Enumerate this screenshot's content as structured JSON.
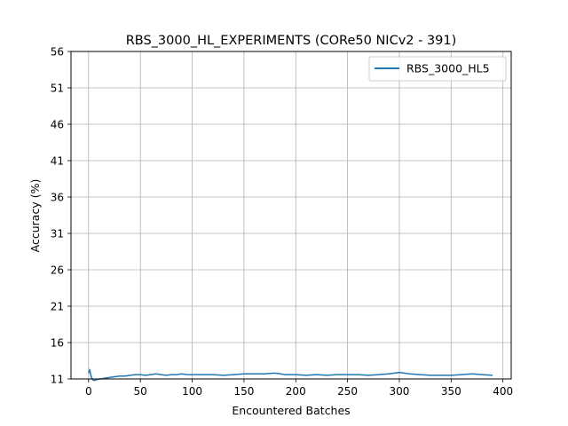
{
  "chart_data": {
    "type": "line",
    "title": "RBS_3000_HL_EXPERIMENTS (CORe50 NICv2 - 391)",
    "xlabel": "Encountered Batches",
    "ylabel": "Accuracy (%)",
    "xlim": [
      -17,
      408
    ],
    "ylim": [
      11,
      56
    ],
    "xticks": [
      0,
      50,
      100,
      150,
      200,
      250,
      300,
      350,
      400
    ],
    "xtick_labels": [
      "0",
      "50",
      "100",
      "150",
      "200",
      "250",
      "300",
      "350",
      "400"
    ],
    "yticks": [
      11,
      16,
      21,
      26,
      31,
      36,
      41,
      46,
      51,
      56
    ],
    "ytick_labels": [
      "11",
      "16",
      "21",
      "26",
      "31",
      "36",
      "41",
      "46",
      "51",
      "56"
    ],
    "grid": true,
    "legend_position": "upper-right",
    "series": [
      {
        "name": "RBS_3000_HL5",
        "color": "#1f77b4",
        "x": [
          0,
          1,
          2,
          3,
          4,
          5,
          6,
          8,
          10,
          12,
          15,
          20,
          25,
          30,
          35,
          40,
          45,
          50,
          55,
          60,
          65,
          70,
          75,
          80,
          85,
          90,
          95,
          100,
          110,
          120,
          130,
          140,
          150,
          160,
          170,
          180,
          190,
          200,
          210,
          220,
          230,
          240,
          250,
          260,
          270,
          280,
          290,
          300,
          310,
          320,
          330,
          340,
          350,
          360,
          370,
          380,
          390
        ],
        "y": [
          11.8,
          12.3,
          11.6,
          11.1,
          10.9,
          10.8,
          10.8,
          10.9,
          11.0,
          11.0,
          11.1,
          11.2,
          11.3,
          11.4,
          11.4,
          11.5,
          11.6,
          11.6,
          11.5,
          11.6,
          11.7,
          11.6,
          11.5,
          11.6,
          11.6,
          11.7,
          11.6,
          11.6,
          11.6,
          11.6,
          11.5,
          11.6,
          11.7,
          11.7,
          11.7,
          11.8,
          11.6,
          11.6,
          11.5,
          11.6,
          11.5,
          11.6,
          11.6,
          11.6,
          11.5,
          11.6,
          11.7,
          11.9,
          11.7,
          11.6,
          11.5,
          11.5,
          11.5,
          11.6,
          11.7,
          11.6,
          11.5
        ]
      }
    ]
  }
}
